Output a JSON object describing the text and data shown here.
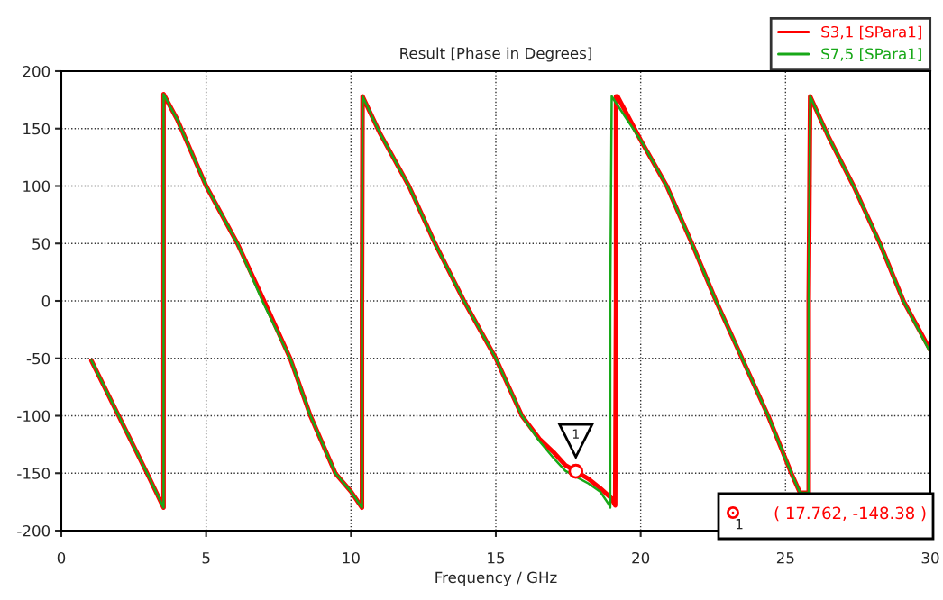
{
  "chart_data": {
    "type": "line",
    "title": "Result [Phase in Degrees]",
    "xlabel": "Frequency / GHz",
    "series": [
      {
        "name": "S3,1 [SPara1]",
        "color": "#ff0000",
        "x": [
          1.04,
          2.0,
          3.0,
          3.53,
          3.53,
          3.53,
          4.0,
          5.0,
          6.08,
          7.0,
          7.9,
          8.6,
          9.46,
          10.0,
          10.38,
          10.38,
          10.4,
          11.0,
          12.0,
          12.9,
          13.9,
          15.0,
          15.9,
          16.5,
          17.0,
          17.4,
          17.762,
          18.2,
          18.6,
          19.0,
          19.12,
          19.15,
          19.15,
          19.2,
          20.0,
          20.9,
          21.77,
          22.6,
          23.5,
          24.4,
          25.2,
          25.5,
          25.8,
          25.8,
          25.85,
          26.5,
          27.35,
          28.26,
          29.07,
          30.0
        ],
        "values": [
          -52,
          -101,
          -152,
          -180,
          0,
          180,
          158,
          100,
          50,
          0,
          -50,
          -100,
          -150,
          -166,
          -180,
          0,
          178,
          146,
          100,
          50,
          0,
          -50,
          -100,
          -120,
          -132,
          -143,
          -148.38,
          -155,
          -163,
          -172,
          -178,
          0,
          178,
          178,
          140,
          100,
          50,
          0,
          -50,
          -100,
          -150,
          -167,
          -167,
          0,
          178,
          142,
          100,
          50,
          0,
          -43
        ]
      },
      {
        "name": "S7,5 [SPara1]",
        "color": "#18a818",
        "x": [
          1.04,
          2.0,
          3.0,
          3.53,
          3.53,
          3.53,
          4.0,
          5.0,
          6.08,
          6.94,
          7.9,
          8.6,
          9.46,
          10.0,
          10.38,
          10.38,
          10.4,
          11.0,
          12.0,
          12.9,
          13.9,
          15.0,
          15.9,
          16.5,
          17.0,
          17.4,
          17.762,
          18.2,
          18.6,
          18.9,
          18.95,
          18.95,
          19.0,
          20.0,
          20.9,
          21.77,
          22.6,
          23.5,
          24.4,
          25.2,
          25.5,
          25.8,
          25.8,
          25.85,
          26.5,
          27.35,
          28.26,
          29.07,
          30.0
        ],
        "values": [
          -52,
          -101,
          -152,
          -180,
          0,
          180,
          158,
          100,
          50,
          0,
          -50,
          -100,
          -150,
          -166,
          -180,
          0,
          178,
          146,
          100,
          50,
          0,
          -50,
          -100,
          -122,
          -137,
          -148,
          -153,
          -159,
          -166,
          -177,
          -180,
          0,
          178,
          140,
          100,
          50,
          0,
          -50,
          -100,
          -150,
          -167,
          -167,
          0,
          178,
          142,
          100,
          50,
          0,
          -45
        ]
      }
    ],
    "xlim": [
      0,
      30
    ],
    "xticks": [
      0,
      5,
      10,
      15,
      20,
      25,
      30
    ],
    "ylim": [
      -200,
      200
    ],
    "yticks": [
      -200,
      -150,
      -100,
      -50,
      0,
      50,
      100,
      150,
      200
    ],
    "grid": true,
    "legend": "top right",
    "line_style": "solid",
    "marker": "none",
    "annotations": [
      {
        "text": "1",
        "x": 17.762,
        "y": -148.38
      },
      "1",
      "( 17.762, -148.38 )"
    ]
  }
}
